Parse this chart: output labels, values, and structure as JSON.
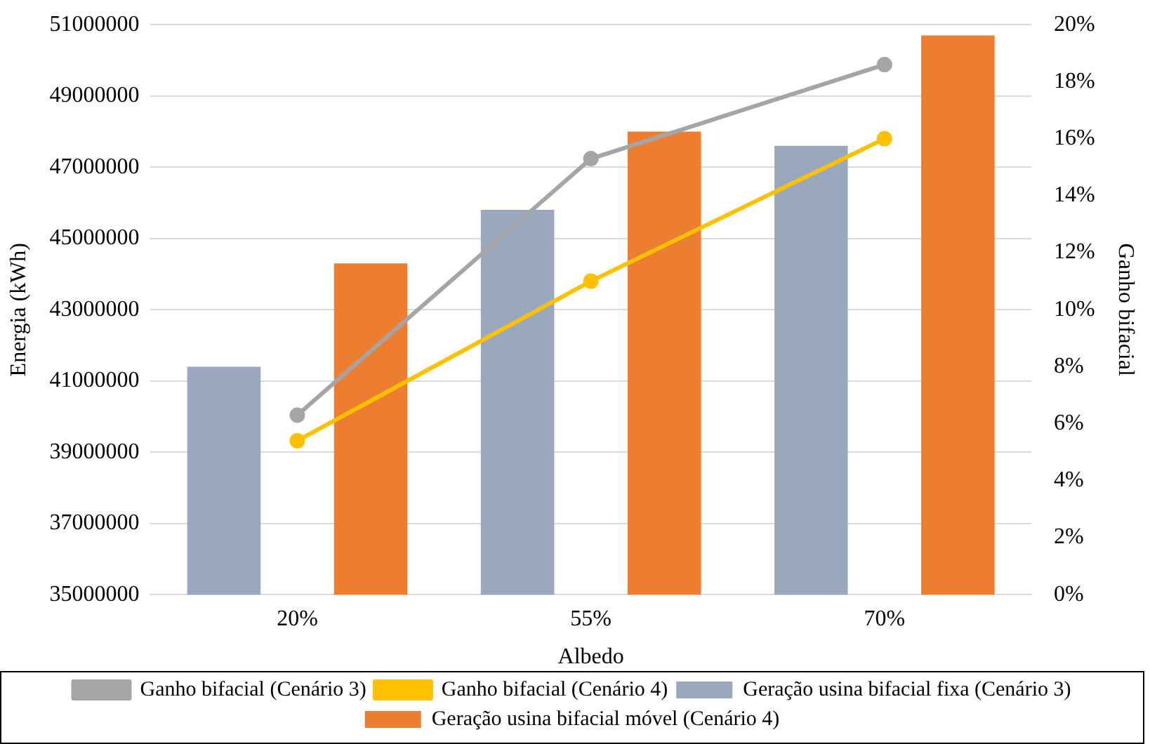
{
  "chart_data": {
    "type": "bar",
    "xlabel": "Albedo",
    "ylabel": "Energia (kWh)",
    "y2label": "Ganho bifacial",
    "categories": [
      "20%",
      "55%",
      "70%"
    ],
    "series": [
      {
        "name": "Geração usina bifacial fixa (Cenário 3)",
        "color": "#9aa8bd",
        "values": [
          41400000,
          45800000,
          47600000
        ]
      },
      {
        "name": "Geração usina bifacial móvel (Cenário 4)",
        "color": "#ed7d31",
        "values": [
          44300000,
          48000000,
          50700000
        ]
      },
      {
        "name": "Ganho bifacial (Cenário 3)",
        "type": "line",
        "axis": "y2",
        "color": "#a5a5a5",
        "values": [
          6.3,
          15.3,
          18.6
        ]
      },
      {
        "name": "Ganho bifacial (Cenário 4)",
        "type": "line",
        "axis": "y2",
        "color": "#ffc000",
        "values": [
          5.4,
          11.0,
          16.0
        ]
      }
    ],
    "ylim": [
      35000000,
      51000000
    ],
    "yticks": [
      35000000,
      37000000,
      39000000,
      41000000,
      43000000,
      45000000,
      47000000,
      49000000,
      51000000
    ],
    "y2lim": [
      0,
      20
    ],
    "y2ticks": [
      {
        "value": 0,
        "label": "0%"
      },
      {
        "value": 2,
        "label": "2%"
      },
      {
        "value": 4,
        "label": "4%"
      },
      {
        "value": 6,
        "label": "6%"
      },
      {
        "value": 8,
        "label": "8%"
      },
      {
        "value": 10,
        "label": "10%"
      },
      {
        "value": 12,
        "label": "12%"
      },
      {
        "value": 14,
        "label": "14%"
      },
      {
        "value": 16,
        "label": "16%"
      },
      {
        "value": 18,
        "label": "18%"
      },
      {
        "value": 20,
        "label": "20%"
      }
    ],
    "grid": "y",
    "legend": "bottom",
    "marker": "circle",
    "line_style": "solid"
  }
}
